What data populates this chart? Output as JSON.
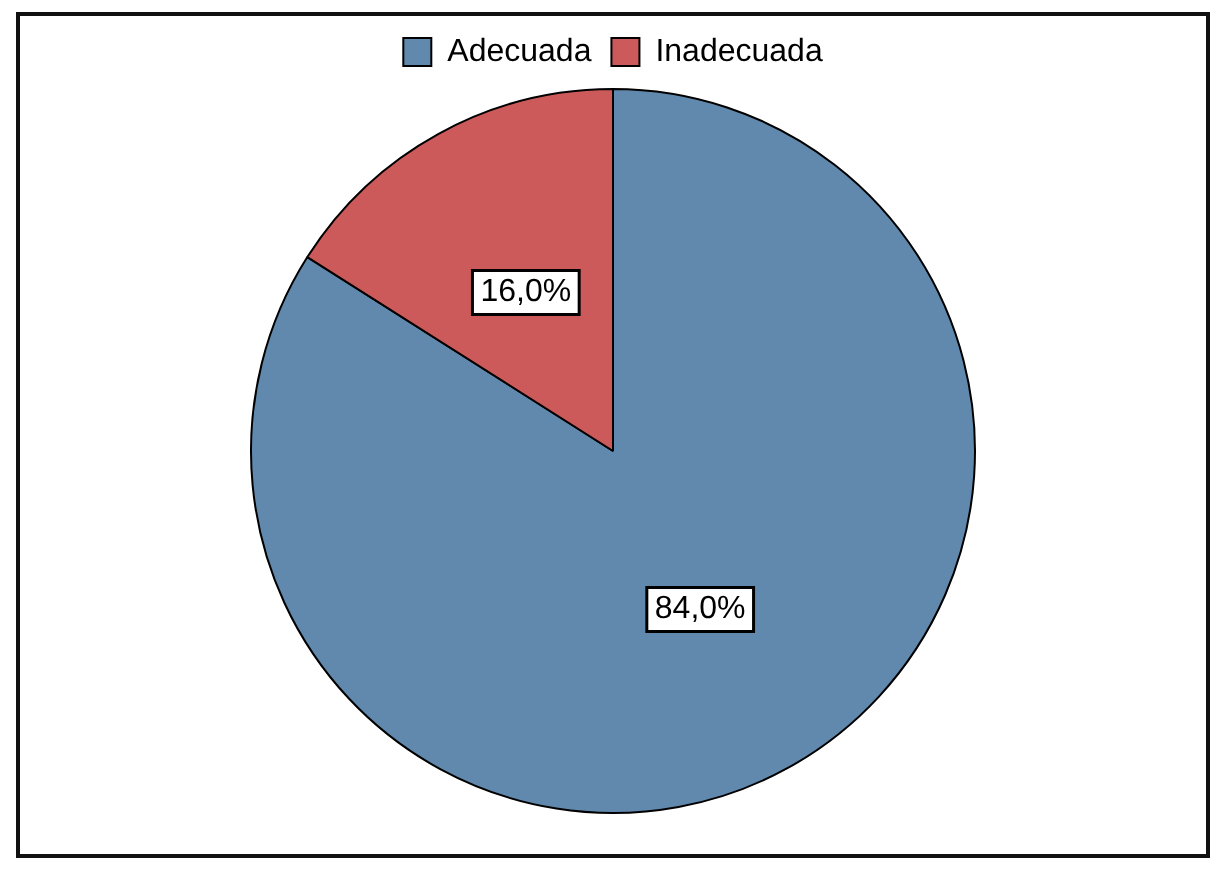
{
  "chart_data": {
    "type": "pie",
    "categories": [
      "Adecuada",
      "Inadecuada"
    ],
    "values": [
      84.0,
      16.0
    ],
    "colors": [
      "#6089ad",
      "#cd5a5a"
    ],
    "value_labels": [
      "84,0%",
      "16,0%"
    ],
    "legend": "top"
  }
}
